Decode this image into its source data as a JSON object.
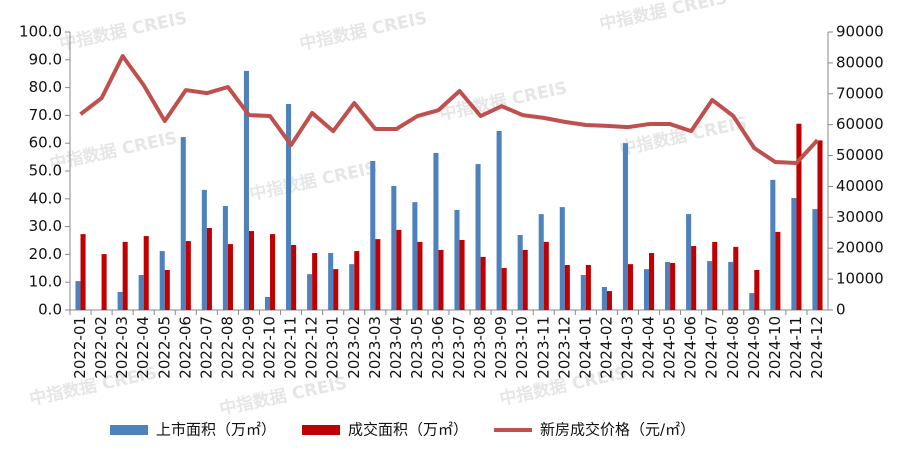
{
  "chart_data": {
    "type": "bar_line",
    "watermark": "中指数据 CREIS",
    "categories": [
      "2022-01",
      "2022-02",
      "2022-03",
      "2022-04",
      "2022-05",
      "2022-06",
      "2022-07",
      "2022-08",
      "2022-09",
      "2022-10",
      "2022-11",
      "2022-12",
      "2023-01",
      "2023-02",
      "2023-03",
      "2023-04",
      "2023-05",
      "2023-06",
      "2023-07",
      "2023-08",
      "2023-09",
      "2023-10",
      "2023-11",
      "2023-12",
      "2024-01",
      "2024-02",
      "2024-03",
      "2024-04",
      "2024-05",
      "2024-06",
      "2024-07",
      "2024-08",
      "2024-09",
      "2024-10",
      "2024-11",
      "2024-12"
    ],
    "series": [
      {
        "name": "上市面积（万㎡）",
        "color": "#4f81bd",
        "kind": "bar",
        "values": [
          10.4,
          0,
          6.5,
          12.6,
          21.2,
          62.2,
          43.2,
          37.4,
          86.0,
          4.7,
          74.1,
          12.9,
          20.5,
          16.5,
          53.6,
          44.6,
          38.8,
          56.5,
          36.0,
          52.5,
          64.4,
          27.0,
          34.5,
          37.0,
          12.6,
          8.3,
          60.0,
          14.7,
          17.3,
          34.5,
          17.6,
          17.3,
          6.1,
          46.8,
          40.3,
          36.3
        ]
      },
      {
        "name": "成交面积（万㎡）",
        "color": "#c00000",
        "kind": "bar",
        "values": [
          27.3,
          20.1,
          24.5,
          26.6,
          14.4,
          24.8,
          29.5,
          23.7,
          28.4,
          27.3,
          23.4,
          20.5,
          14.7,
          21.2,
          25.5,
          28.8,
          24.5,
          21.6,
          25.2,
          19.1,
          15.1,
          21.6,
          24.5,
          16.2,
          16.2,
          6.8,
          16.5,
          20.5,
          16.9,
          23.0,
          24.5,
          22.7,
          14.4,
          28.1,
          67.0,
          61.0
        ]
      },
      {
        "name": "新房成交价格（元/㎡）",
        "color": "#c0504d",
        "kind": "line",
        "axis": "y2",
        "values": [
          63400,
          68600,
          82200,
          72800,
          61200,
          71200,
          70200,
          72200,
          63100,
          62800,
          53400,
          63800,
          57900,
          67000,
          58600,
          58600,
          62800,
          64700,
          70900,
          62800,
          66000,
          63100,
          62200,
          60900,
          59900,
          59600,
          59200,
          60200,
          60200,
          57900,
          68000,
          62800,
          52400,
          47900,
          47600,
          55000
        ]
      }
    ],
    "ylim": [
      0,
      100
    ],
    "yticks": [
      {
        "value": 0,
        "label": "0.0"
      },
      {
        "value": 10,
        "label": "10.0"
      },
      {
        "value": 20,
        "label": "20.0"
      },
      {
        "value": 30,
        "label": "30.0"
      },
      {
        "value": 40,
        "label": "40.0"
      },
      {
        "value": 50,
        "label": "50.0"
      },
      {
        "value": 60,
        "label": "60.0"
      },
      {
        "value": 70,
        "label": "70.0"
      },
      {
        "value": 80,
        "label": "80.0"
      },
      {
        "value": 90,
        "label": "90.0"
      },
      {
        "value": 100,
        "label": "100.0"
      }
    ],
    "y2lim": [
      0,
      90000
    ],
    "y2ticks": [
      0,
      10000,
      20000,
      30000,
      40000,
      50000,
      60000,
      70000,
      80000,
      90000
    ],
    "grid": false
  }
}
